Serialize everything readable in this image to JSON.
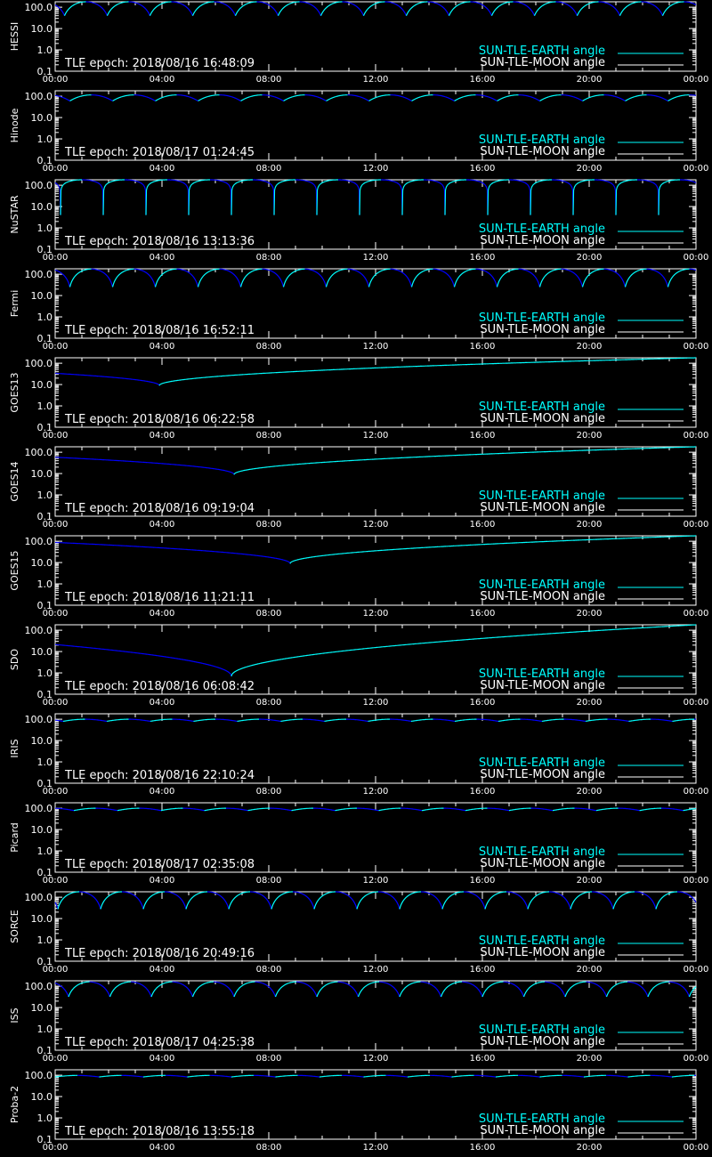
{
  "colors": {
    "background": "#000000",
    "axes": "#ffffff",
    "earth_angle": "#00ffff",
    "moon_angle": "#ffffff",
    "blue_curve": "#0000ff"
  },
  "chart_data": {
    "type": "line",
    "x_tick_labels": [
      "00:00",
      "04:00",
      "08:00",
      "12:00",
      "16:00",
      "20:00",
      "00:00"
    ],
    "y_scale": "log",
    "ylim": [
      0.1,
      180
    ],
    "y_tick_labels": [
      "100.0",
      "10.0",
      "1.0",
      "0.1"
    ],
    "legend_placement": "lower-right",
    "legend": [
      "SUN-TLE-EARTH angle",
      "SUN-TLE-MOON angle"
    ],
    "panels": [
      {
        "name": "HESSI",
        "epoch": "TLE epoch: 2018/08/16 16:48:09",
        "model": "periodic",
        "period_hours": 1.6,
        "offset_hours": 0.35,
        "min_deg": 40,
        "max_deg": 180,
        "sharp": false
      },
      {
        "name": "Hinode",
        "epoch": "TLE epoch: 2018/08/17 01:24:45",
        "model": "periodic",
        "period_hours": 1.6,
        "offset_hours": 0.55,
        "min_deg": 60,
        "max_deg": 115,
        "sharp": false
      },
      {
        "name": "NuSTAR",
        "epoch": "TLE epoch: 2018/08/16 13:13:36",
        "model": "periodic",
        "period_hours": 1.6,
        "offset_hours": 0.2,
        "min_deg": 4,
        "max_deg": 180,
        "sharp": true
      },
      {
        "name": "Fermi",
        "epoch": "TLE epoch: 2018/08/16 16:52:11",
        "model": "periodic",
        "period_hours": 1.6,
        "offset_hours": 0.55,
        "min_deg": 25,
        "max_deg": 175,
        "sharp": false
      },
      {
        "name": "GOES13",
        "epoch": "TLE epoch: 2018/08/16 06:22:58",
        "model": "daily",
        "min_time_hours": 3.9,
        "min_deg": 9,
        "max_deg": 180
      },
      {
        "name": "GOES14",
        "epoch": "TLE epoch: 2018/08/16 09:19:04",
        "model": "daily",
        "min_time_hours": 6.7,
        "min_deg": 9,
        "max_deg": 180
      },
      {
        "name": "GOES15",
        "epoch": "TLE epoch: 2018/08/16 11:21:11",
        "model": "daily",
        "min_time_hours": 8.8,
        "min_deg": 9,
        "max_deg": 180
      },
      {
        "name": "SDO",
        "epoch": "TLE epoch: 2018/08/16 06:08:42",
        "model": "daily",
        "min_time_hours": 6.6,
        "min_deg": 0.7,
        "max_deg": 180
      },
      {
        "name": "IRIS",
        "epoch": "TLE epoch: 2018/08/16 22:10:24",
        "model": "periodic",
        "period_hours": 1.63,
        "offset_hours": 0.3,
        "min_deg": 80,
        "max_deg": 100,
        "sharp": false
      },
      {
        "name": "Picard",
        "epoch": "TLE epoch: 2018/08/17 02:35:08",
        "model": "periodic",
        "period_hours": 1.63,
        "offset_hours": 0.7,
        "min_deg": 78,
        "max_deg": 100,
        "sharp": false
      },
      {
        "name": "SORCE",
        "epoch": "TLE epoch: 2018/08/16 20:49:16",
        "model": "periodic",
        "period_hours": 1.6,
        "offset_hours": 0.1,
        "min_deg": 28,
        "max_deg": 180,
        "sharp": false
      },
      {
        "name": "ISS",
        "epoch": "TLE epoch: 2018/08/17 04:25:38",
        "model": "periodic",
        "period_hours": 1.55,
        "offset_hours": 0.5,
        "min_deg": 32,
        "max_deg": 160,
        "sharp": false
      },
      {
        "name": "Proba-2",
        "epoch": "TLE epoch: 2018/08/16 13:55:18",
        "model": "periodic",
        "period_hours": 1.65,
        "offset_hours": 0.0,
        "min_deg": 83,
        "max_deg": 98,
        "sharp": false
      }
    ]
  }
}
